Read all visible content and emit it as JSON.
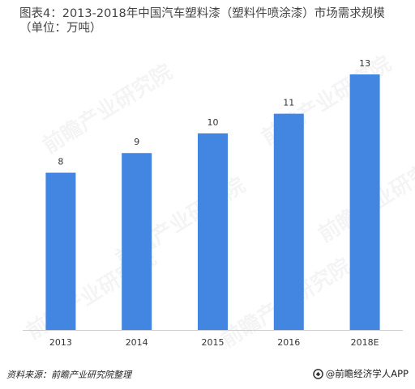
{
  "chart_data": {
    "type": "bar",
    "title": "图表4：2013-2018年中国汽车塑料漆（塑料件喷涂漆）市场需求规模（单位：万吨）",
    "categories": [
      "2013",
      "2014",
      "2015",
      "2016",
      "2018E"
    ],
    "values": [
      8,
      9,
      10,
      11,
      13
    ],
    "ylim": [
      0,
      13
    ],
    "xlabel": "",
    "ylabel": "",
    "grid": false,
    "legend": "none",
    "bar_color": "#4286E2"
  },
  "footer": {
    "source": "资料来源：前瞻产业研究院整理",
    "brand": "@前瞻经济学人APP"
  },
  "watermark": {
    "text": "前瞻产业研究院"
  },
  "icons": {
    "brand_logo": "qianzhan-logo-icon"
  }
}
